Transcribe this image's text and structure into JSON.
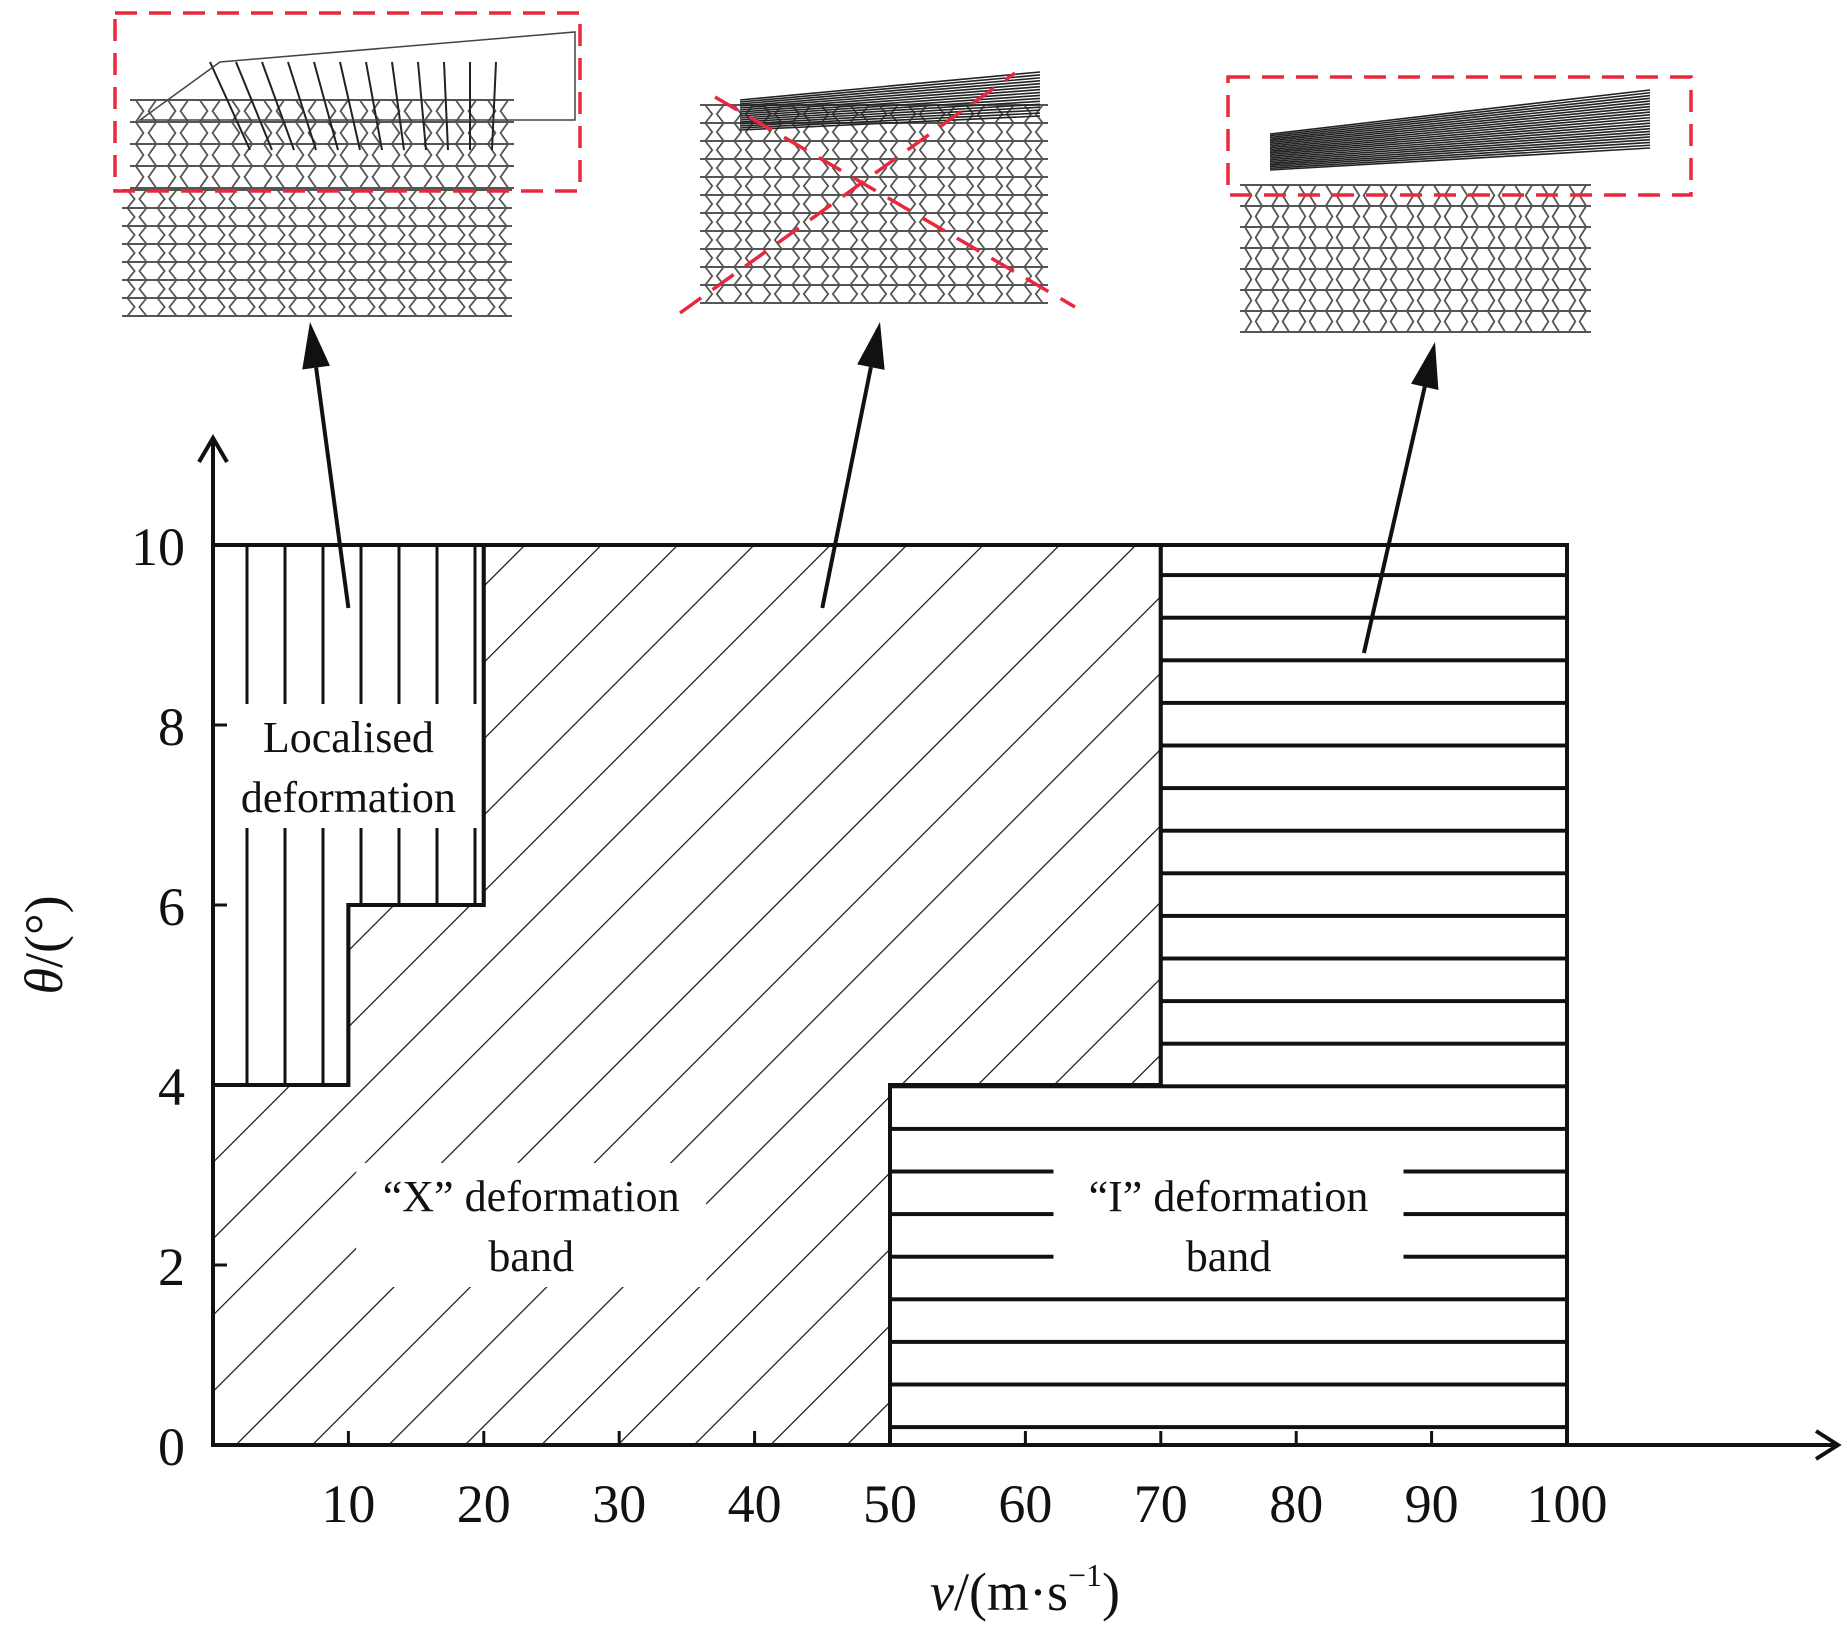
{
  "chart_data": {
    "type": "region-map",
    "xlabel": {
      "var": "v",
      "unit_prefix": "/(m·s",
      "unit_exp": "−1",
      "unit_suffix": ")"
    },
    "ylabel": {
      "var": "θ",
      "unit": "/(°)"
    },
    "x_ticks": [
      10,
      20,
      30,
      40,
      50,
      60,
      70,
      80,
      90,
      100
    ],
    "y_ticks": [
      0,
      2,
      4,
      6,
      8,
      10
    ],
    "xlim": [
      0,
      100
    ],
    "ylim": [
      0,
      10
    ],
    "regions": [
      {
        "key": "localised",
        "label_lines": [
          "Localised",
          "deformation"
        ],
        "hatch": "vertical",
        "polygon": [
          [
            0,
            4
          ],
          [
            10,
            4
          ],
          [
            10,
            6
          ],
          [
            20,
            6
          ],
          [
            20,
            10
          ],
          [
            0,
            10
          ]
        ],
        "label_at": [
          10,
          7.7
        ]
      },
      {
        "key": "x_band",
        "label_lines": [
          "“X” deformation",
          "band"
        ],
        "hatch": "diagonal",
        "polygon": [
          [
            0,
            0
          ],
          [
            50,
            0
          ],
          [
            50,
            4
          ],
          [
            70,
            4
          ],
          [
            70,
            10
          ],
          [
            20,
            10
          ],
          [
            20,
            6
          ],
          [
            10,
            6
          ],
          [
            10,
            4
          ],
          [
            0,
            4
          ]
        ],
        "label_at": [
          23.5,
          2.6
        ]
      },
      {
        "key": "i_band",
        "label_lines": [
          "“I” deformation",
          "band"
        ],
        "hatch": "horizontal",
        "polygon": [
          [
            50,
            0
          ],
          [
            100,
            0
          ],
          [
            100,
            10
          ],
          [
            70,
            10
          ],
          [
            70,
            4
          ],
          [
            50,
            4
          ]
        ],
        "label_at": [
          75,
          2.6
        ]
      }
    ],
    "insets": [
      {
        "key": "localised",
        "pattern": "localised",
        "arrow_to": [
          10,
          9.3
        ]
      },
      {
        "key": "x_band",
        "pattern": "x",
        "arrow_to": [
          45,
          9.3
        ]
      },
      {
        "key": "i_band",
        "pattern": "i",
        "arrow_to": [
          85,
          8.8
        ]
      }
    ],
    "colors": {
      "ink": "#111111",
      "highlight": "#e8283c",
      "cell": "#555555"
    }
  }
}
